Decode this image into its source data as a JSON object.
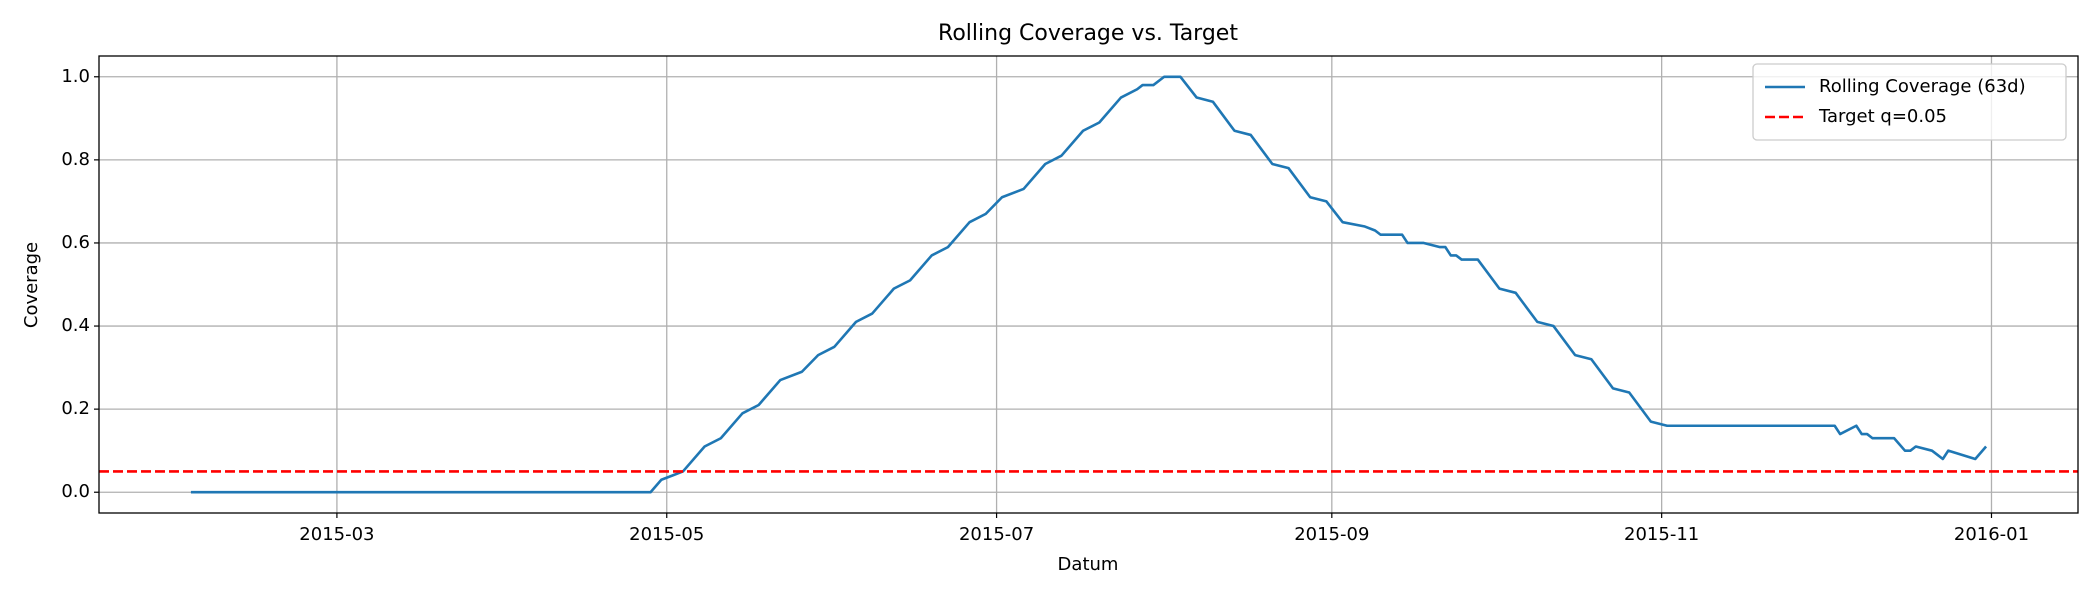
{
  "chart_data": {
    "type": "line",
    "title": "Rolling Coverage vs. Target",
    "xlabel": "Datum",
    "ylabel": "Coverage",
    "x": [
      "2015-02-02",
      "2015-04-28",
      "2015-04-30",
      "2015-05-02",
      "2015-05-04",
      "2015-05-08",
      "2015-05-11",
      "2015-05-15",
      "2015-05-18",
      "2015-05-22",
      "2015-05-26",
      "2015-05-29",
      "2015-06-01",
      "2015-06-05",
      "2015-06-08",
      "2015-06-12",
      "2015-06-15",
      "2015-06-19",
      "2015-06-22",
      "2015-06-26",
      "2015-06-29",
      "2015-07-02",
      "2015-07-06",
      "2015-07-10",
      "2015-07-13",
      "2015-07-17",
      "2015-07-20",
      "2015-07-24",
      "2015-07-27",
      "2015-07-28",
      "2015-07-30",
      "2015-08-01",
      "2015-08-04",
      "2015-08-07",
      "2015-08-10",
      "2015-08-14",
      "2015-08-17",
      "2015-08-21",
      "2015-08-24",
      "2015-08-28",
      "2015-08-31",
      "2015-09-03",
      "2015-09-07",
      "2015-09-09",
      "2015-09-10",
      "2015-09-14",
      "2015-09-15",
      "2015-09-18",
      "2015-09-21",
      "2015-09-22",
      "2015-09-23",
      "2015-09-24",
      "2015-09-25",
      "2015-09-28",
      "2015-10-02",
      "2015-10-05",
      "2015-10-09",
      "2015-10-12",
      "2015-10-16",
      "2015-10-19",
      "2015-10-23",
      "2015-10-26",
      "2015-10-30",
      "2015-11-02",
      "2015-12-03",
      "2015-12-04",
      "2015-12-07",
      "2015-12-08",
      "2015-12-09",
      "2015-12-10",
      "2015-12-14",
      "2015-12-16",
      "2015-12-17",
      "2015-12-18",
      "2015-12-21",
      "2015-12-22",
      "2015-12-23",
      "2015-12-24",
      "2015-12-29",
      "2015-12-31"
    ],
    "series": [
      {
        "name": "Rolling Coverage (63d)",
        "color": "#1f77b4",
        "values": [
          0,
          0,
          0.03,
          0.04,
          0.05,
          0.11,
          0.13,
          0.19,
          0.21,
          0.27,
          0.29,
          0.33,
          0.35,
          0.41,
          0.43,
          0.49,
          0.51,
          0.57,
          0.59,
          0.65,
          0.67,
          0.71,
          0.73,
          0.79,
          0.81,
          0.87,
          0.89,
          0.95,
          0.97,
          0.98,
          0.98,
          1.0,
          1.0,
          0.95,
          0.94,
          0.87,
          0.86,
          0.79,
          0.78,
          0.71,
          0.7,
          0.65,
          0.64,
          0.63,
          0.62,
          0.62,
          0.6,
          0.6,
          0.59,
          0.59,
          0.57,
          0.57,
          0.56,
          0.56,
          0.49,
          0.48,
          0.41,
          0.4,
          0.33,
          0.32,
          0.25,
          0.24,
          0.17,
          0.16,
          0.16,
          0.14,
          0.16,
          0.14,
          0.14,
          0.13,
          0.13,
          0.1,
          0.1,
          0.11,
          0.1,
          0.09,
          0.08,
          0.1,
          0.08,
          0.11
        ]
      }
    ],
    "reference_lines": [
      {
        "name": "Target q=0.05",
        "value": 0.05,
        "color": "#ff0000",
        "style": "dashed"
      }
    ],
    "xlim": [
      "2015-01-16",
      "2016-01-17"
    ],
    "xticks": [
      {
        "value": "2015-03-01",
        "label": "2015-03"
      },
      {
        "value": "2015-05-01",
        "label": "2015-05"
      },
      {
        "value": "2015-07-01",
        "label": "2015-07"
      },
      {
        "value": "2015-09-01",
        "label": "2015-09"
      },
      {
        "value": "2015-11-01",
        "label": "2015-11"
      },
      {
        "value": "2016-01-01",
        "label": "2016-01"
      }
    ],
    "ylim": [
      -0.05,
      1.05
    ],
    "yticks": [
      {
        "value": 0,
        "label": "0.0"
      },
      0.2,
      0.4,
      0.6,
      0.8,
      {
        "value": 1,
        "label": "1.0"
      }
    ],
    "grid": true,
    "legend": "upper right"
  }
}
